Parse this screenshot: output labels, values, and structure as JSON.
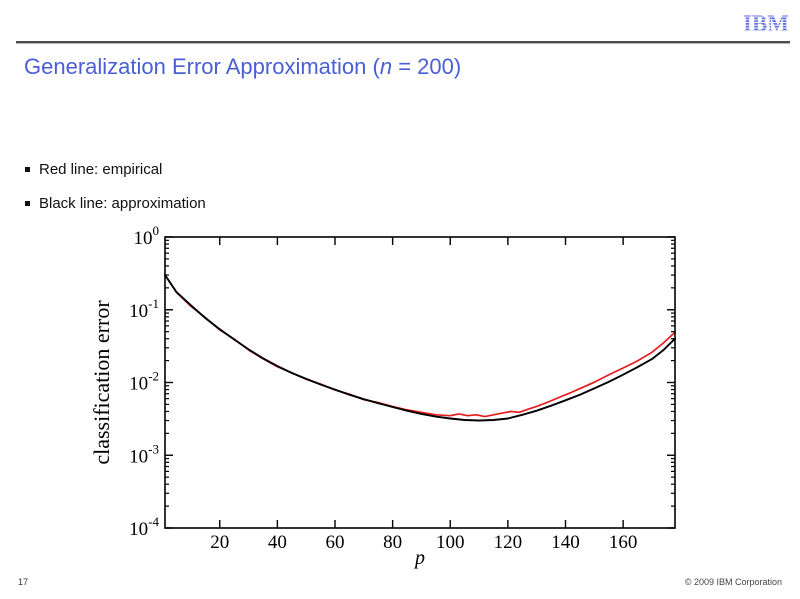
{
  "slide": {
    "header": {
      "logo_text": "IBM"
    },
    "title": {
      "prefix": "Generalization Error Approximation (",
      "variable": "n",
      "suffix": " = 200)"
    },
    "bullets": [
      {
        "text": "Red line: empirical"
      },
      {
        "text": "Black line: approximation"
      }
    ],
    "footer": {
      "page_number": "17",
      "copyright": "© 2009 IBM Corporation"
    }
  },
  "colors": {
    "title_blue": "#4a5fd5",
    "logo_blue": "#5d6fe0",
    "empirical_red": "#e81c1c",
    "approximation_black": "#000000"
  },
  "chart_data": {
    "type": "line",
    "title": "",
    "xlabel": "p",
    "ylabel": "classification error",
    "yscale": "log",
    "box": true,
    "grid": false,
    "legend": "none",
    "xlim": [
      1,
      178
    ],
    "ylim_exp": [
      -4,
      0
    ],
    "x_ticks": [
      20,
      40,
      60,
      80,
      100,
      120,
      140,
      160
    ],
    "y_tick_exponents": [
      0,
      -1,
      -2,
      -3,
      -4
    ],
    "series": [
      {
        "name": "empirical",
        "color": "#e81c1c",
        "x": [
          1,
          5,
          10,
          15,
          20,
          25,
          30,
          35,
          40,
          45,
          50,
          55,
          60,
          65,
          70,
          75,
          80,
          85,
          90,
          95,
          100,
          103,
          106,
          109,
          112,
          115,
          118,
          121,
          124,
          127,
          130,
          134,
          138,
          142,
          146,
          150,
          155,
          160,
          165,
          170,
          174,
          178
        ],
        "y": [
          0.3,
          0.173,
          0.112,
          0.078,
          0.053,
          0.0395,
          0.028,
          0.0212,
          0.0165,
          0.0136,
          0.0111,
          0.0095,
          0.0079,
          0.0069,
          0.0058,
          0.0053,
          0.0047,
          0.0042,
          0.0039,
          0.0036,
          0.0035,
          0.0037,
          0.0035,
          0.0036,
          0.0034,
          0.0036,
          0.0038,
          0.004,
          0.0039,
          0.0043,
          0.0047,
          0.0054,
          0.0063,
          0.0073,
          0.0086,
          0.0101,
          0.0127,
          0.0158,
          0.0198,
          0.026,
          0.035,
          0.049
        ]
      },
      {
        "name": "approximation",
        "color": "#000000",
        "x": [
          1,
          5,
          10,
          15,
          20,
          25,
          30,
          35,
          40,
          45,
          50,
          55,
          60,
          65,
          70,
          75,
          80,
          85,
          90,
          95,
          100,
          105,
          110,
          115,
          120,
          125,
          130,
          135,
          140,
          145,
          150,
          155,
          160,
          165,
          170,
          174,
          178
        ],
        "y": [
          0.3,
          0.175,
          0.115,
          0.077,
          0.054,
          0.039,
          0.0285,
          0.0215,
          0.0168,
          0.0135,
          0.0112,
          0.0094,
          0.008,
          0.0068,
          0.0059,
          0.0052,
          0.0046,
          0.0041,
          0.0037,
          0.0034,
          0.0032,
          0.00305,
          0.003,
          0.00305,
          0.0032,
          0.0036,
          0.0041,
          0.0048,
          0.0057,
          0.0068,
          0.0083,
          0.0102,
          0.0128,
          0.0163,
          0.021,
          0.028,
          0.04
        ]
      }
    ]
  }
}
